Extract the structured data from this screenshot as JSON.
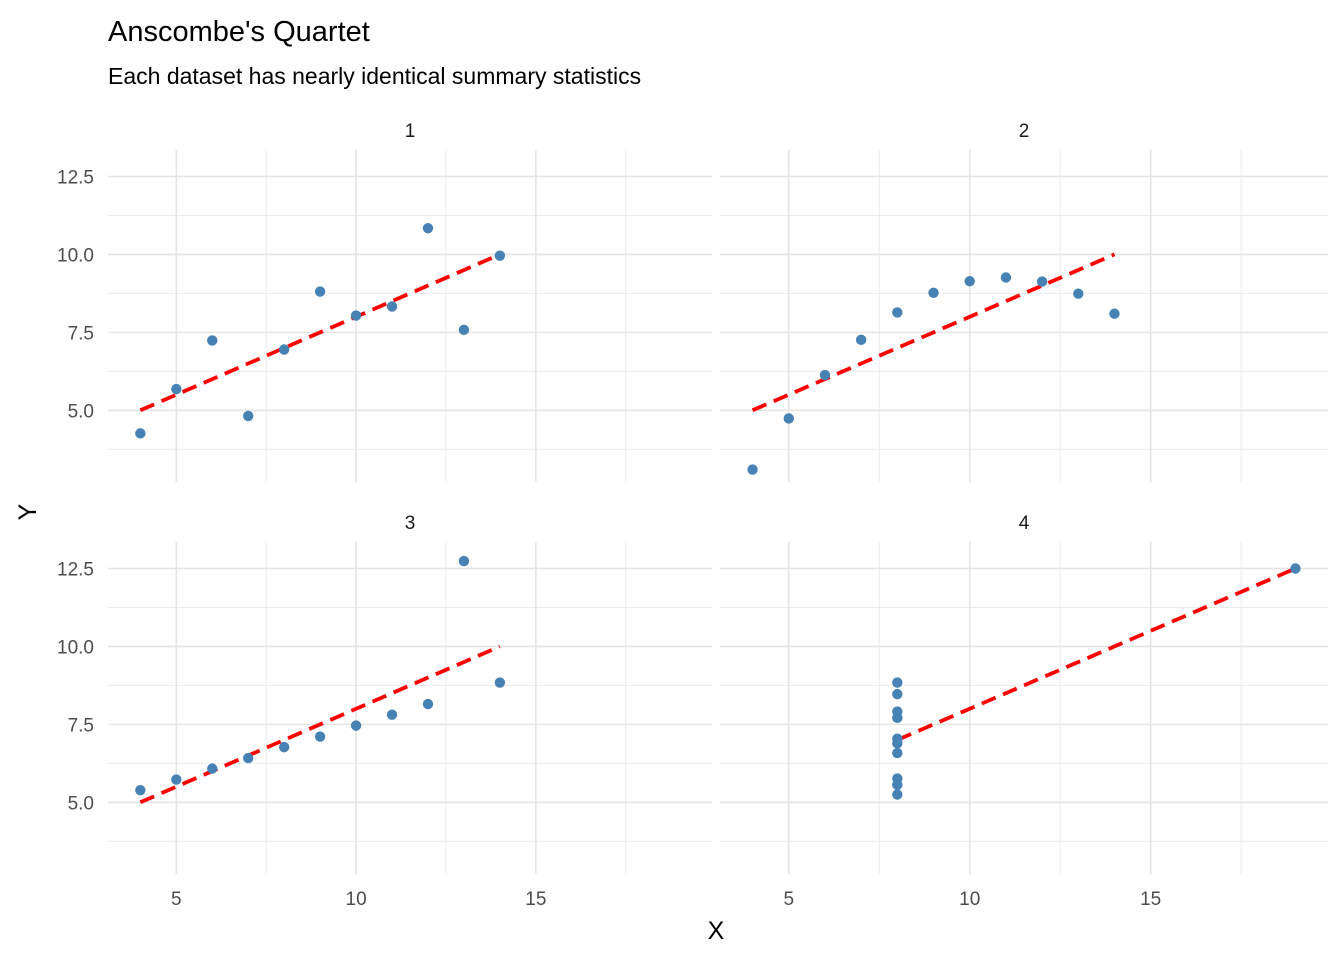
{
  "chart_data": {
    "type": "scatter",
    "title": "Anscombe's Quartet",
    "subtitle": "Each dataset has nearly identical summary statistics",
    "xlabel": "X",
    "ylabel": "Y",
    "xlim": [
      3.1,
      19.9
    ],
    "ylim": [
      2.7,
      13.35
    ],
    "x_ticks": [
      5,
      10,
      15
    ],
    "x_tick_labels": [
      "5",
      "10",
      "15"
    ],
    "y_ticks": [
      5,
      7.5,
      10,
      12.5
    ],
    "y_tick_labels": [
      "5.0",
      "7.5",
      "10.0",
      "12.5"
    ],
    "grid": true,
    "point_color": "#4682B4",
    "line_color": "#FF0000",
    "line_style": "dashed",
    "panels": [
      {
        "name": "1",
        "points": [
          [
            10,
            8.04
          ],
          [
            8,
            6.95
          ],
          [
            13,
            7.58
          ],
          [
            9,
            8.81
          ],
          [
            11,
            8.33
          ],
          [
            14,
            9.96
          ],
          [
            6,
            7.24
          ],
          [
            4,
            4.26
          ],
          [
            12,
            10.84
          ],
          [
            7,
            4.82
          ],
          [
            5,
            5.68
          ]
        ],
        "fit": {
          "intercept": 3.0,
          "slope": 0.5,
          "x_range": [
            4,
            14
          ]
        }
      },
      {
        "name": "2",
        "points": [
          [
            10,
            9.14
          ],
          [
            8,
            8.14
          ],
          [
            13,
            8.74
          ],
          [
            9,
            8.77
          ],
          [
            11,
            9.26
          ],
          [
            14,
            8.1
          ],
          [
            6,
            6.13
          ],
          [
            4,
            3.1
          ],
          [
            12,
            9.13
          ],
          [
            7,
            7.26
          ],
          [
            5,
            4.74
          ]
        ],
        "fit": {
          "intercept": 3.0,
          "slope": 0.5,
          "x_range": [
            4,
            14
          ]
        }
      },
      {
        "name": "3",
        "points": [
          [
            10,
            7.46
          ],
          [
            8,
            6.77
          ],
          [
            13,
            12.74
          ],
          [
            9,
            7.11
          ],
          [
            11,
            7.81
          ],
          [
            14,
            8.84
          ],
          [
            6,
            6.08
          ],
          [
            4,
            5.39
          ],
          [
            12,
            8.15
          ],
          [
            7,
            6.42
          ],
          [
            5,
            5.73
          ]
        ],
        "fit": {
          "intercept": 3.0,
          "slope": 0.5,
          "x_range": [
            4,
            14
          ]
        }
      },
      {
        "name": "4",
        "points": [
          [
            8,
            6.58
          ],
          [
            8,
            5.76
          ],
          [
            8,
            7.71
          ],
          [
            8,
            8.84
          ],
          [
            8,
            8.47
          ],
          [
            8,
            7.04
          ],
          [
            8,
            5.25
          ],
          [
            19,
            12.5
          ],
          [
            8,
            5.56
          ],
          [
            8,
            7.91
          ],
          [
            8,
            6.89
          ]
        ],
        "fit": {
          "intercept": 3.0,
          "slope": 0.5,
          "x_range": [
            8,
            19
          ]
        }
      }
    ]
  }
}
